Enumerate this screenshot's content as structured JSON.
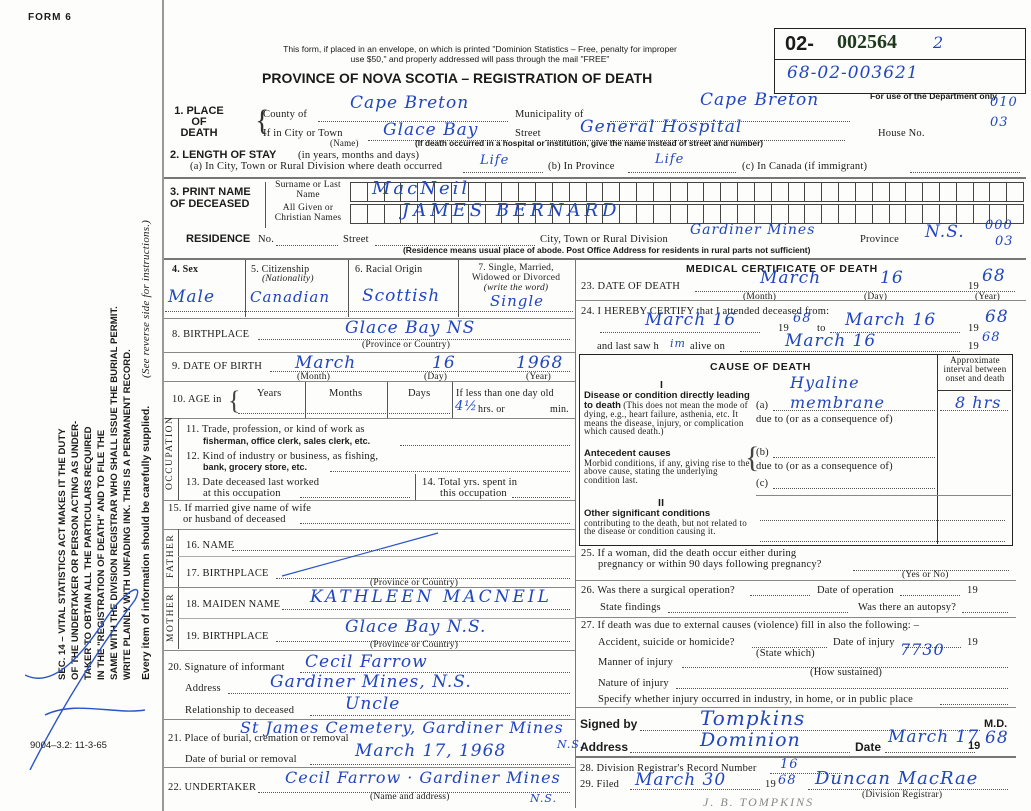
{
  "margin": {
    "form_number": "FORM 6",
    "statute_lines": [
      "SEC. 14 – VITAL STATISTICS ACT MAKES IT THE DUTY",
      "OF THE UNDERTAKER OR PERSON ACTING AS UNDER-",
      "TAKER TO OBTAIN ALL THE PARTICULARS REQUIRED",
      "IN THE \"REGISTRATION OF DEATH\" AND TO FILE THE",
      "SAME WITH THE DIVISION REGISTRAR WHO SHALL ISSUE THE BURIAL PERMIT.",
      "WRITE PLAINLY WITH UNFADING INK. THIS IS A PERMANENT RECORD."
    ],
    "every_item": "Every item of information should be carefully supplied.",
    "see_reverse": "(See reverse side for instructions.)",
    "print_code": "9004–3.2: 11-3-65"
  },
  "header": {
    "notice_line1": "This form, if placed in an envelope, on which is printed \"Dominion Statistics – Free, penalty for improper",
    "notice_line2": "use $50,\" and properly addressed will pass through the mail \"FREE\"",
    "title": "PROVINCE OF NOVA SCOTIA – REGISTRATION OF DEATH",
    "reg_prefix": "02-",
    "reg_number": "002564",
    "reg_suffix": "2",
    "handwritten_number": "68-02-003621",
    "dept_only": "For use of the Department only"
  },
  "place": {
    "label1": "1. PLACE",
    "label2": "OF",
    "label3": "DEATH",
    "county_label": "County of",
    "county": "Cape Breton",
    "municipality_label": "Municipality of",
    "municipality": "Cape Breton",
    "city_label": "If in City or Town",
    "city": "Glace Bay",
    "name_caption": "(Name)",
    "street_label": "Street",
    "street": "General Hospital",
    "house_label": "House No.",
    "hospital_note": "(If death occurred in a hospital or institution, give the name instead of street and number)",
    "code1": "010",
    "code2": "03"
  },
  "stay": {
    "label": "2. LENGTH OF STAY",
    "label_note": "(in years, months and days)",
    "a_label": "(a) In City, Town or Rural Division where death occurred",
    "a_value": "Life",
    "b_label": "(b) In Province",
    "b_value": "Life",
    "c_label": "(c) In Canada (if immigrant)"
  },
  "name": {
    "label1": "3. PRINT NAME",
    "label2": "OF DECEASED",
    "surname_label": "Surname or Last Name",
    "surname": "MacNeil",
    "given_label": "All Given or Christian Names",
    "given": "James Bernard"
  },
  "residence": {
    "label": "RESIDENCE",
    "no_label": "No.",
    "street_label": "Street",
    "city_label": "City, Town or Rural Division",
    "city": "Gardiner Mines",
    "province_label": "Province",
    "province": "N.S.",
    "code1": "000",
    "code2": "03",
    "note": "(Residence means usual place of abode. Post Office Address for residents in rural parts not sufficient)"
  },
  "personal": {
    "sex_label": "4. Sex",
    "sex": "Male",
    "citizenship_label": "5. Citizenship",
    "citizenship_note": "(Nationality)",
    "citizenship": "Canadian",
    "racial_label": "6. Racial Origin",
    "racial": "Scottish",
    "marital_label1": "7. Single, Married,",
    "marital_label2": "Widowed or Divorced",
    "marital_label3": "(write the word)",
    "marital": "Single",
    "birthplace_label": "8. BIRTHPLACE",
    "birthplace": "Glace Bay NS",
    "birthplace_caption": "(Province or Country)",
    "dob_label": "9. DATE OF BIRTH",
    "dob_month": "March",
    "dob_day": "16",
    "dob_year": "1968",
    "month_caption": "(Month)",
    "day_caption": "(Day)",
    "year_caption": "(Year)",
    "age_label": "10. AGE in",
    "years_label": "Years",
    "months_label": "Months",
    "days_label": "Days",
    "less_day_label": "If less than one day old",
    "hours": "4½",
    "hrs_label": "hrs. or",
    "min_label": "min."
  },
  "occupation": {
    "side_label": "OCCUPATION",
    "q11a": "11. Trade, profession, or kind of work as",
    "q11b": "fisherman, office clerk, sales clerk, etc.",
    "q12a": "12. Kind of industry or business, as fishing,",
    "q12b": "bank, grocery store, etc.",
    "q13a": "13. Date deceased last worked",
    "q13b": "at this occupation",
    "q14a": "14. Total yrs. spent in",
    "q14b": "this occupation"
  },
  "family": {
    "q15a": "15. If married give name of wife",
    "q15b": "or husband of deceased",
    "father_label": "FATHER",
    "q16": "16. NAME",
    "q17": "17. BIRTHPLACE",
    "prov_caption": "(Province or Country)",
    "mother_label": "MOTHER",
    "q18": "18. MAIDEN NAME",
    "maiden_name": "Kathleen MacNeil",
    "q19": "19. BIRTHPLACE",
    "mother_birthplace": "Glace Bay N.S."
  },
  "informant": {
    "q20": "20. Signature of informant",
    "signature": "Cecil Farrow",
    "address_label": "Address",
    "address": "Gardiner Mines, N.S.",
    "relationship_label": "Relationship to deceased",
    "relationship": "Uncle"
  },
  "burial": {
    "q21": "21. Place of burial, cremation or removal",
    "place": "St James Cemetery, Gardiner Mines",
    "place_suffix": "N.S.",
    "date_label": "Date of burial or removal",
    "date": "March 17, 1968",
    "q22": "22. UNDERTAKER",
    "undertaker": "Cecil Farrow · Gardiner Mines",
    "undertaker_suffix": "N.S.",
    "undertaker_caption": "(Name and address)"
  },
  "medical": {
    "title": "MEDICAL CERTIFICATE OF DEATH",
    "q23": "23. DATE OF DEATH",
    "death_month": "March",
    "death_day": "16",
    "yr_prefix": "19",
    "death_year": "68",
    "q24": "24. I HEREBY CERTIFY that I attended deceased from:",
    "from": "March 16",
    "from_year": "68",
    "to_label": "to",
    "to": "March 16",
    "to_year": "68",
    "last_saw_label": "and last saw h",
    "last_saw_pronoun": "im",
    "alive_label": "alive on",
    "last_saw": "March 16",
    "last_saw_year": "68"
  },
  "cause": {
    "title": "CAUSE OF DEATH",
    "interval_label": "Approximate interval between onset and death",
    "part1": "I",
    "direct_title": "Disease or condition directly leading to death",
    "direct_note": "(This does not mean the mode of dying, e.g., heart failure, asthenia, etc. It means the disease, injury, or complication which caused death.)",
    "a_label": "(a)",
    "a_value": "Hyaline membrane",
    "a_interval": "8 hrs",
    "due_to": "due to (or as a consequence of)",
    "antecedent_title": "Antecedent causes",
    "antecedent_note": "Morbid conditions, if any, giving rise to the above cause, stating the underlying condition last.",
    "b_label": "(b)",
    "c_label": "(c)",
    "part2": "II",
    "other_title": "Other significant conditions",
    "other_note": "contributing to the death, but not related to the disease or condition causing it."
  },
  "extra": {
    "q25a": "25. If a woman, did the death occur either during",
    "q25b": "pregnancy or within 90 days following pregnancy?",
    "yes_no": "(Yes or No)",
    "q26": "26. Was there a surgical operation?",
    "op_date": "Date of operation",
    "yr19": "19",
    "findings": "State findings",
    "autopsy": "Was there an autopsy?",
    "q27": "27. If death was due to external causes (violence) fill in also the following: –",
    "accident": "Accident, suicide or homicide?",
    "injury_date": "Date of injury",
    "state_which": "(State which)",
    "code": "7730",
    "manner": "Manner of injury",
    "how": "(How sustained)",
    "nature": "Nature of injury",
    "specify": "Specify whether injury occurred in industry, in home, or in public place"
  },
  "signature": {
    "signed_label": "Signed by",
    "signed": "Tompkins",
    "md": "M.D.",
    "address_label": "Address",
    "address": "Dominion",
    "date_label": "Date",
    "date": "March 17",
    "yr_prefix": "19",
    "year": "68",
    "q28": "28. Division Registrar's Record Number",
    "record_number": "16",
    "q29": "29. Filed",
    "filed": "March 30",
    "filed_year": "68",
    "registrar": "Duncan MacRae",
    "registrar_caption": "(Division Registrar)",
    "stamp": "J. B. TOMPKINS"
  }
}
